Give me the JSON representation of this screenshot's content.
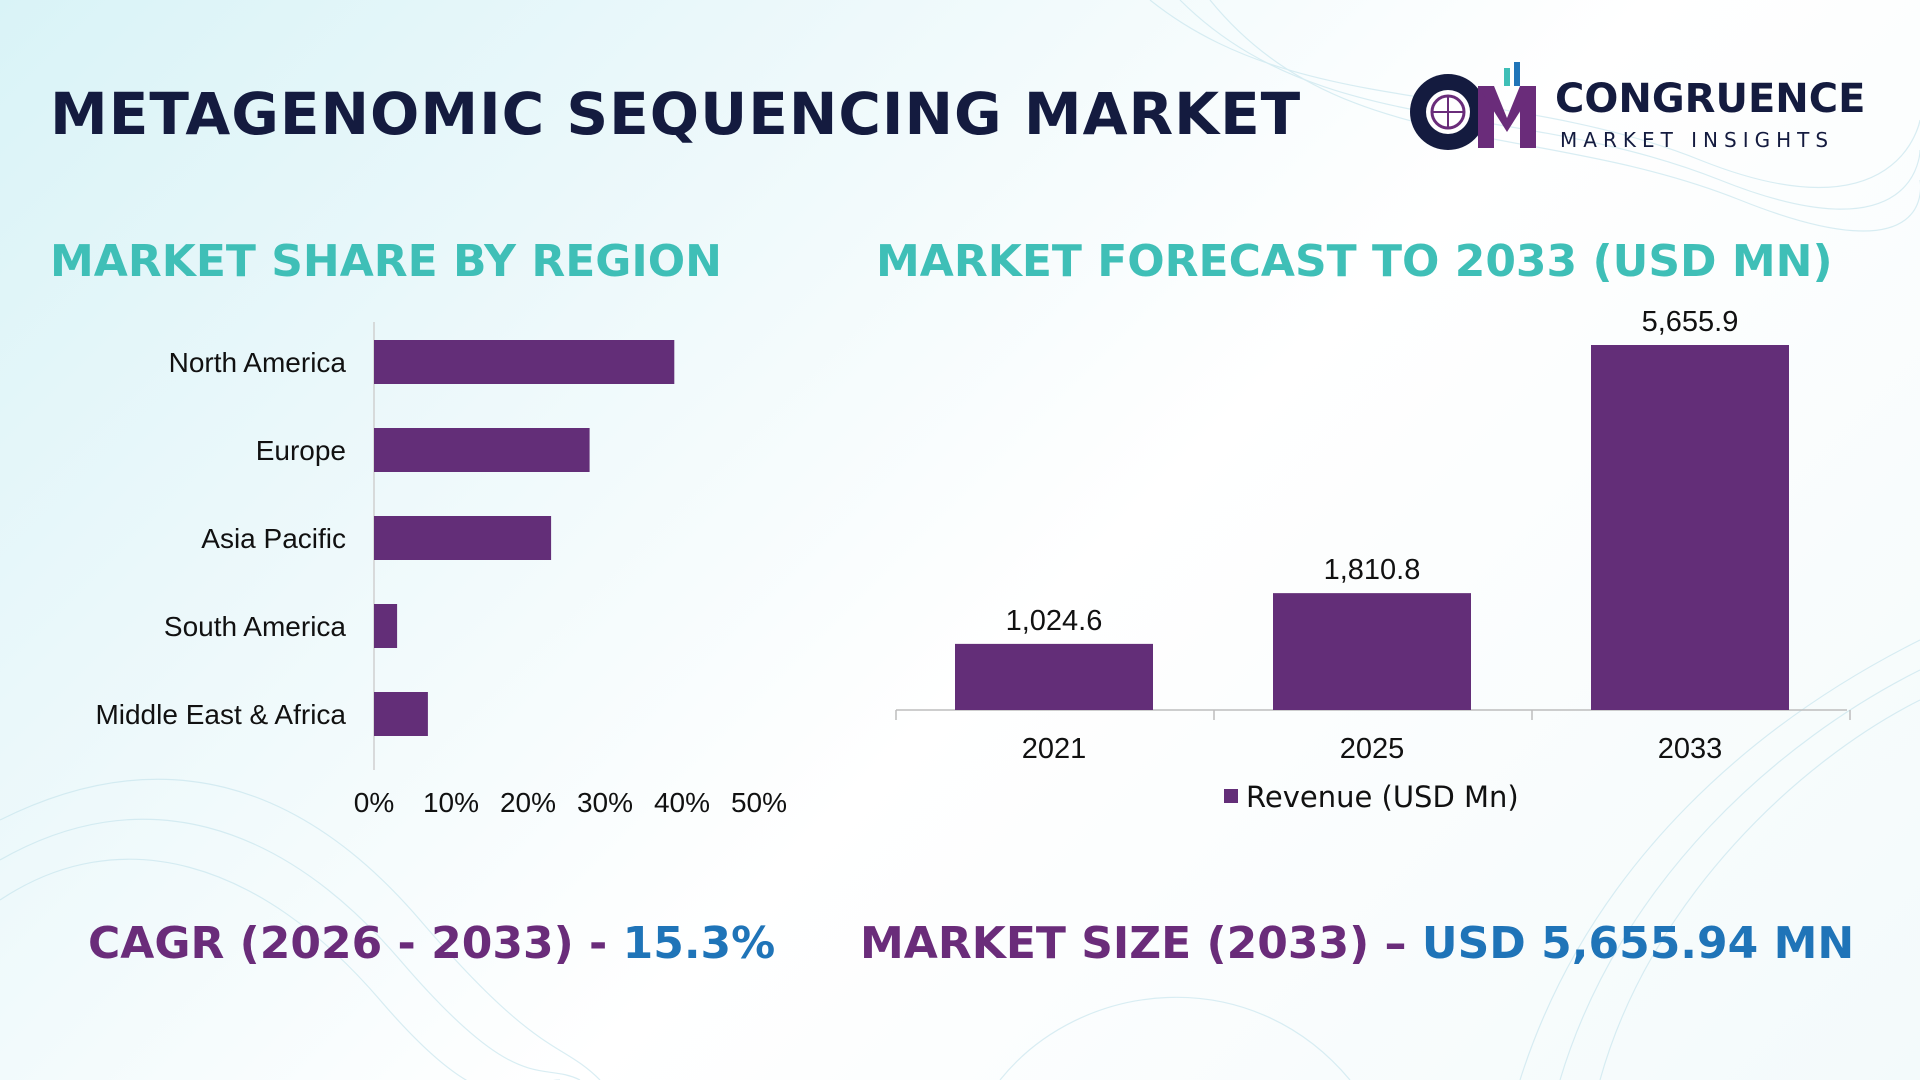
{
  "title": "METAGENOMIC SEQUENCING MARKET",
  "logo": {
    "name": "CONGRUENCE",
    "subtitle": "MARKET INSIGHTS",
    "mark": "CM"
  },
  "sections": {
    "left": "MARKET SHARE BY REGION",
    "right": "MARKET FORECAST TO 2033 (USD MN)"
  },
  "stats": {
    "cagr_label": "CAGR (2026 - 2033) -",
    "cagr_value": "15.3%",
    "size_label": "MARKET SIZE (2033) –",
    "size_value": "USD 5,655.94 MN"
  },
  "colors": {
    "bar": "#632e78",
    "accent": "#3fbfb7",
    "title": "#141b3f",
    "value": "#1f74b8"
  },
  "chart_data": [
    {
      "type": "bar",
      "orientation": "horizontal",
      "title": "MARKET SHARE BY REGION",
      "categories": [
        "North America",
        "Europe",
        "Asia Pacific",
        "South America",
        "Middle East & Africa"
      ],
      "values": [
        39,
        28,
        23,
        3,
        7
      ],
      "unit": "%",
      "xlim": [
        0,
        50
      ],
      "xticks": [
        "0%",
        "10%",
        "20%",
        "30%",
        "40%",
        "50%"
      ],
      "grid": false
    },
    {
      "type": "bar",
      "title": "MARKET FORECAST TO 2033 (USD MN)",
      "categories": [
        "2021",
        "2025",
        "2033"
      ],
      "series": [
        {
          "name": "Revenue (USD Mn)",
          "values": [
            1024.6,
            1810.8,
            5655.9
          ]
        }
      ],
      "data_labels": [
        "1,024.6",
        "1,810.8",
        "5,655.9"
      ],
      "ylim": [
        0,
        6000
      ],
      "legend": "bottom",
      "grid": false
    }
  ]
}
